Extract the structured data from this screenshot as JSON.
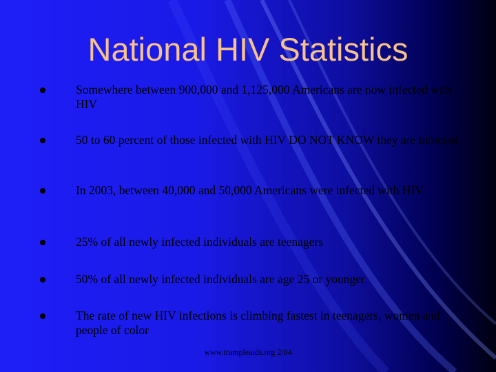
{
  "title": "National HIV Statistics",
  "bullets": [
    "Somewhere between 900,000 and 1,125,000 Americans are now infected with HIV",
    "50 to 60 percent of those infected with HIV DO NOT KNOW they are infected",
    "In 2003, between 40,000 and 50,000 Americans were infected with HIV",
    "25% of all newly infected individuals are teenagers",
    "50% of all newly infected individuals are age 25 or younger",
    "The rate of new HIV infections is climbing fastest in teenagers, women and people of color"
  ],
  "footer": "www.trampleaids.org 2/04"
}
